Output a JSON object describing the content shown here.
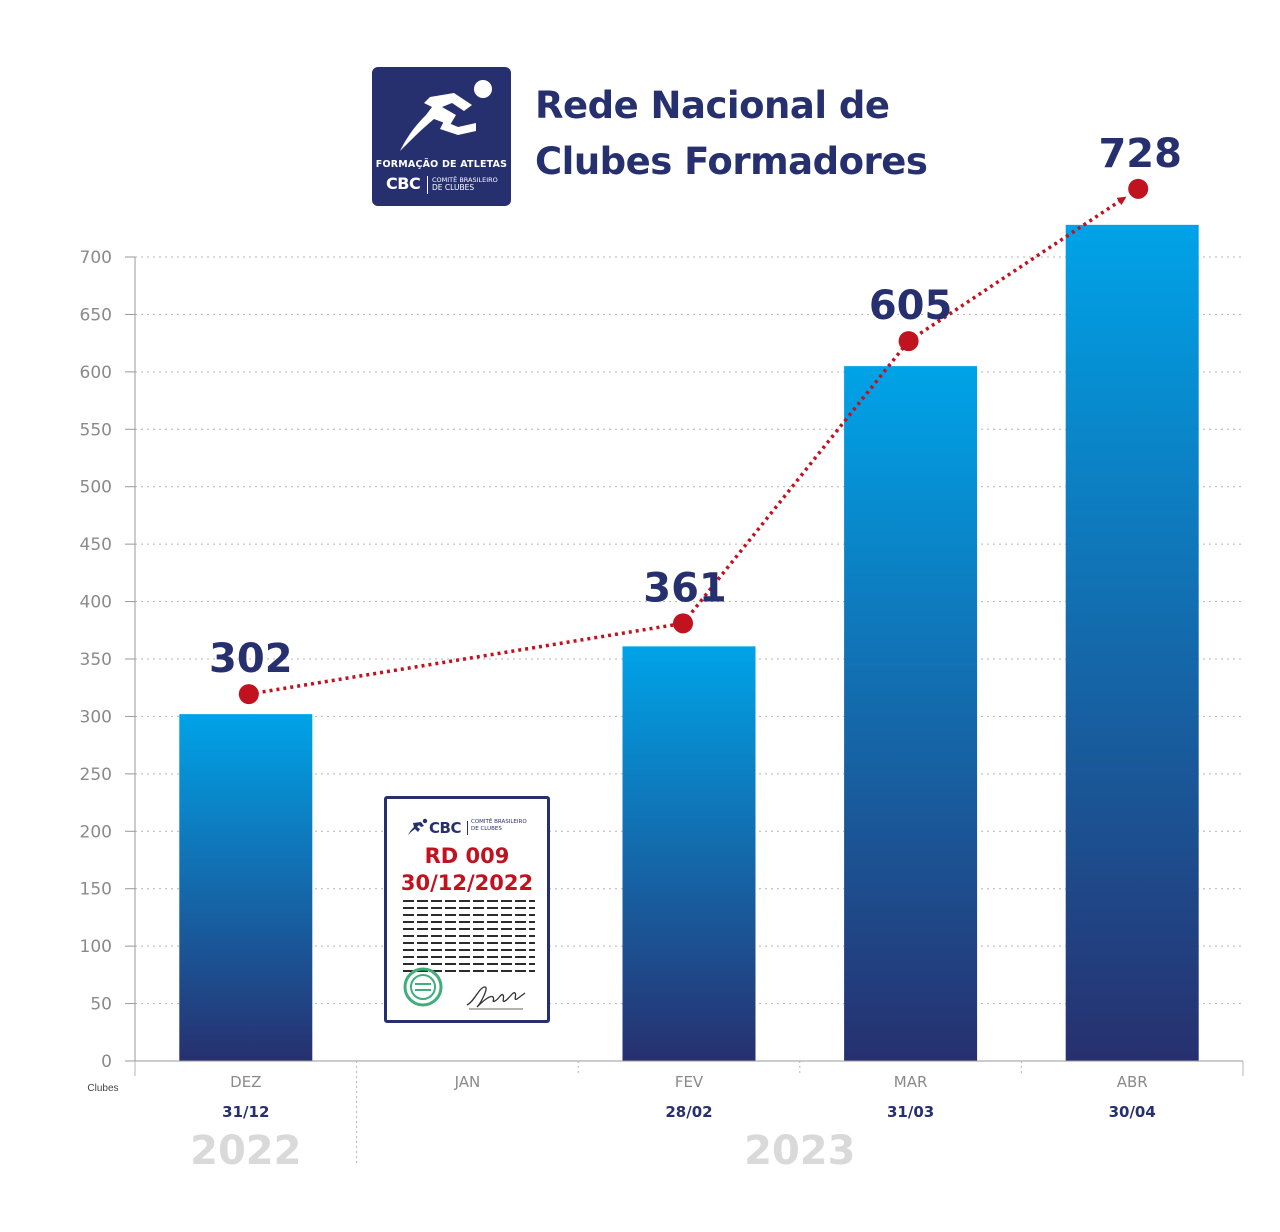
{
  "header": {
    "title_line1": "Rede Nacional de",
    "title_line2": "Clubes Formadores",
    "logo": {
      "program": "FORMAÇÃO DE ATLETAS",
      "brand": "CBC",
      "org_line1": "COMITÊ BRASILEIRO",
      "org_line2": "DE",
      "org_line3": "CLUBES"
    }
  },
  "document": {
    "brand": "CBC",
    "org_line1": "COMITÊ BRASILEIRO",
    "org_line2": "DE CLUBES",
    "code": "RD 009",
    "date": "30/12/2022",
    "icons": [
      "runner-icon",
      "seal-icon",
      "signature-icon"
    ]
  },
  "colors": {
    "navy": "#27306f",
    "bar_top": "#00a3e8",
    "bar_bottom": "#27306f",
    "trend": "#c1121f",
    "axis_text": "#8a8a8a",
    "year_text": "#d9d9d9"
  },
  "chart_data": {
    "type": "bar",
    "ylabel": "Clubes",
    "ylim": [
      0,
      700
    ],
    "yticks": [
      0,
      50,
      100,
      150,
      200,
      250,
      300,
      350,
      400,
      450,
      500,
      550,
      600,
      650,
      700
    ],
    "grid": true,
    "categories": [
      "DEZ",
      "JAN",
      "FEV",
      "MAR",
      "ABR"
    ],
    "dates": [
      "31/12",
      "",
      "28/02",
      "31/03",
      "30/04"
    ],
    "values": [
      302,
      null,
      361,
      605,
      728
    ],
    "value_labels": [
      "302",
      "",
      "361",
      "605",
      "728"
    ],
    "years": [
      {
        "label": "2022",
        "from": "DEZ",
        "to": "DEZ"
      },
      {
        "label": "2023",
        "from": "JAN",
        "to": "ABR"
      }
    ],
    "trend_line": {
      "style": "dotted",
      "arrow": true,
      "points": [
        "DEZ",
        "FEV",
        "MAR",
        "ABR"
      ]
    }
  }
}
